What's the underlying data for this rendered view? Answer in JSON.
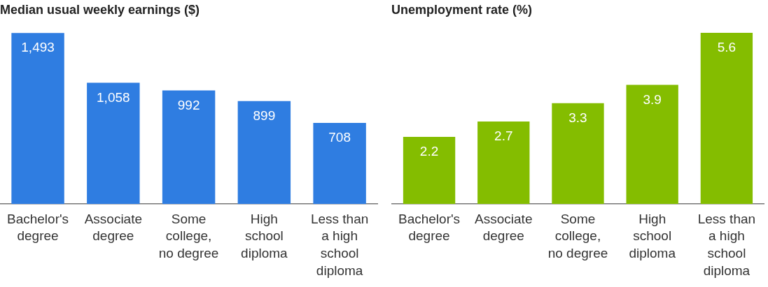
{
  "chart_data": [
    {
      "type": "bar",
      "title": "Median usual weekly earnings ($)",
      "categories": [
        "Bachelor's degree",
        "Associate degree",
        "Some college, no degree",
        "High school diploma",
        "Less than a high school diploma"
      ],
      "values": [
        1493,
        1058,
        992,
        899,
        708
      ],
      "value_labels": [
        "1,493",
        "1,058",
        "992",
        "899",
        "708"
      ],
      "color": "#2f7de1",
      "grid": false,
      "legend": false
    },
    {
      "type": "bar",
      "title": "Unemployment rate (%)",
      "categories": [
        "Bachelor's degree",
        "Associate degree",
        "Some college, no degree",
        "High school diploma",
        "Less than a high school diploma"
      ],
      "values": [
        2.2,
        2.7,
        3.3,
        3.9,
        5.6
      ],
      "data_labels": true,
      "color": "#84bd00",
      "grid": false,
      "legend": false
    }
  ]
}
